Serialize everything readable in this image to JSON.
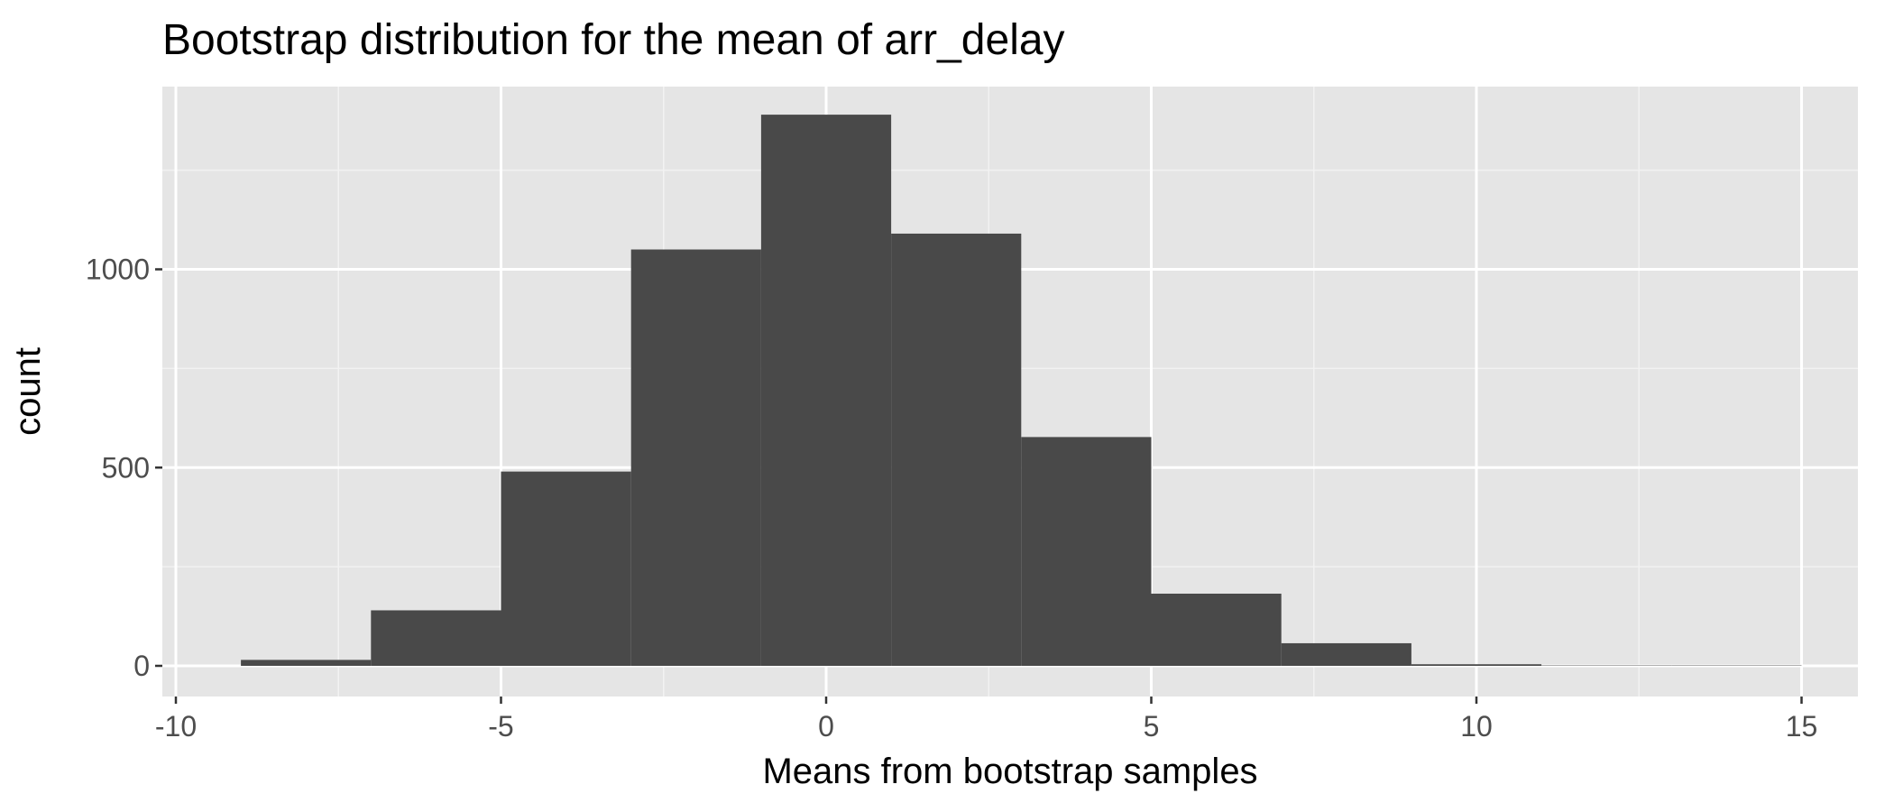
{
  "chart_data": {
    "type": "bar",
    "title": "Bootstrap distribution for the mean of arr_delay",
    "xlabel": "Means from bootstrap samples",
    "ylabel": "count",
    "xlim": [
      -10,
      15
    ],
    "ylim": [
      0,
      1400
    ],
    "x_ticks": [
      -10,
      -5,
      0,
      5,
      10,
      15
    ],
    "y_ticks": [
      0,
      500,
      1000
    ],
    "x_tick_labels": [
      "-10",
      "-5",
      "0",
      "5",
      "10",
      "15"
    ],
    "y_tick_labels": [
      "0",
      "500",
      "1000"
    ],
    "bins": [
      {
        "start": -9,
        "end": -7,
        "count": 15
      },
      {
        "start": -7,
        "end": -5,
        "count": 140
      },
      {
        "start": -5,
        "end": -3,
        "count": 490
      },
      {
        "start": -3,
        "end": -1,
        "count": 1050
      },
      {
        "start": -1,
        "end": 1,
        "count": 1390
      },
      {
        "start": 1,
        "end": 3,
        "count": 1090
      },
      {
        "start": 3,
        "end": 5,
        "count": 577
      },
      {
        "start": 5,
        "end": 7,
        "count": 182
      },
      {
        "start": 7,
        "end": 9,
        "count": 57
      },
      {
        "start": 9,
        "end": 11,
        "count": 4
      },
      {
        "start": 11,
        "end": 13,
        "count": 1
      },
      {
        "start": 13,
        "end": 15,
        "count": 1
      }
    ],
    "grid": true,
    "colors": {
      "panel_background": "#e5e5e5",
      "grid_major": "#ffffff",
      "grid_minor": "#f2f2f2",
      "bar_fill": "#494949",
      "tick_text": "#4d4d4d",
      "tick_mark": "#333333"
    }
  }
}
